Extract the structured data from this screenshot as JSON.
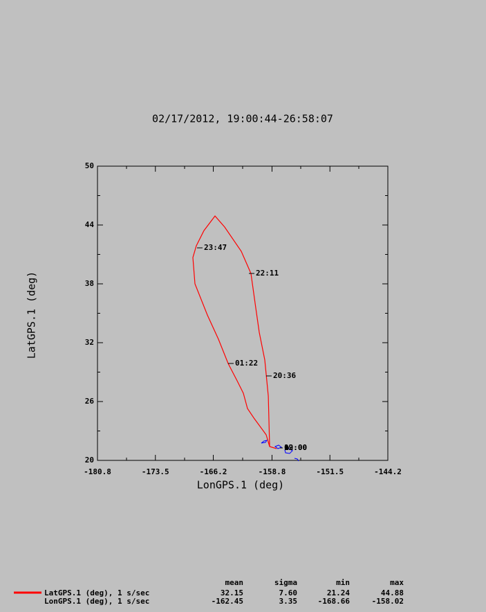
{
  "chart_data": {
    "type": "line",
    "title": "02/17/2012, 19:00:44-26:58:07",
    "x_label": "LonGPS.1 (deg)",
    "y_label": "LatGPS.1 (deg)",
    "xlim": [
      -180.8,
      -144.2
    ],
    "xticks": [
      -180.8,
      -173.5,
      -166.2,
      -158.8,
      -151.5,
      -144.2
    ],
    "ylim": [
      20,
      50
    ],
    "yticks": [
      20,
      26,
      32,
      38,
      44,
      50
    ],
    "grid": false,
    "series": [
      {
        "name": "LatGPS.1 (deg), 1 s/sec",
        "color": "#ff0000",
        "x": [
          -158.23,
          -159.1,
          -159.27,
          -159.71,
          -160.41,
          -160.84,
          -161.45,
          -162.67,
          -164.77,
          -165.99,
          -167.38,
          -168.34,
          -168.77,
          -168.51,
          -166.94,
          -165.55,
          -164.33,
          -163.2,
          -162.41,
          -161.89,
          -161.02,
          -159.54,
          -159.1,
          -158.23
        ],
        "values": [
          21.2,
          21.41,
          26.56,
          30.24,
          33.06,
          35.53,
          39.06,
          41.32,
          43.79,
          44.92,
          43.43,
          41.88,
          40.68,
          38.0,
          34.82,
          32.35,
          29.88,
          28.12,
          26.85,
          25.29,
          24.24,
          22.61,
          21.41,
          21.2
        ]
      }
    ],
    "annotations": [
      "23:47",
      "22:11",
      "01:22",
      "20:36",
      "02:00",
      "19:00"
    ],
    "stats": {
      "columns": [
        "mean",
        "sigma",
        "min",
        "max"
      ],
      "rows": [
        {
          "values": [
            "32.15",
            "7.60",
            "21.24",
            "44.88"
          ]
        },
        {
          "label": "LonGPS.1 (deg), 1 s/sec",
          "values": [
            "-162.45",
            "3.35",
            "-168.66",
            "-158.02"
          ]
        }
      ]
    }
  }
}
